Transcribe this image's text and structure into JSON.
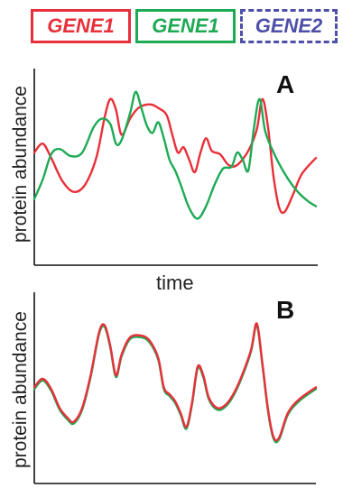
{
  "legend": {
    "items": [
      {
        "label": "GENE1",
        "color": "#e8303a",
        "border": "solid"
      },
      {
        "label": "GENE1",
        "color": "#1eaa55",
        "border": "solid"
      },
      {
        "label": "GENE2",
        "color": "#4d4fa8",
        "border": "dashed"
      }
    ]
  },
  "chart_data": [
    {
      "type": "line",
      "panel": "A",
      "ylabel": "protein abundance",
      "xlabel": "time",
      "ylim": [
        0,
        1
      ],
      "xlim": [
        0,
        1
      ],
      "grid": false,
      "series": [
        {
          "name": "GENE1",
          "color": "#e8303a",
          "points": [
            [
              0,
              0.58
            ],
            [
              0.03,
              0.63
            ],
            [
              0.06,
              0.55
            ],
            [
              0.1,
              0.42
            ],
            [
              0.14,
              0.36
            ],
            [
              0.18,
              0.4
            ],
            [
              0.22,
              0.55
            ],
            [
              0.25,
              0.78
            ],
            [
              0.27,
              0.88
            ],
            [
              0.29,
              0.82
            ],
            [
              0.31,
              0.68
            ],
            [
              0.34,
              0.77
            ],
            [
              0.37,
              0.83
            ],
            [
              0.41,
              0.85
            ],
            [
              0.44,
              0.83
            ],
            [
              0.47,
              0.79
            ],
            [
              0.49,
              0.68
            ],
            [
              0.51,
              0.58
            ],
            [
              0.53,
              0.61
            ],
            [
              0.55,
              0.54
            ],
            [
              0.57,
              0.47
            ],
            [
              0.59,
              0.58
            ],
            [
              0.61,
              0.66
            ],
            [
              0.63,
              0.59
            ],
            [
              0.66,
              0.57
            ],
            [
              0.69,
              0.51
            ],
            [
              0.72,
              0.51
            ],
            [
              0.76,
              0.59
            ],
            [
              0.79,
              0.71
            ],
            [
              0.81,
              0.88
            ],
            [
              0.83,
              0.72
            ],
            [
              0.85,
              0.44
            ],
            [
              0.87,
              0.27
            ],
            [
              0.89,
              0.25
            ],
            [
              0.92,
              0.35
            ],
            [
              0.95,
              0.46
            ],
            [
              1.0,
              0.55
            ]
          ]
        },
        {
          "name": "GENE1",
          "color": "#1eaa55",
          "points": [
            [
              0,
              0.32
            ],
            [
              0.03,
              0.43
            ],
            [
              0.06,
              0.57
            ],
            [
              0.09,
              0.6
            ],
            [
              0.13,
              0.56
            ],
            [
              0.17,
              0.58
            ],
            [
              0.21,
              0.72
            ],
            [
              0.24,
              0.77
            ],
            [
              0.27,
              0.74
            ],
            [
              0.29,
              0.63
            ],
            [
              0.31,
              0.65
            ],
            [
              0.34,
              0.8
            ],
            [
              0.36,
              0.92
            ],
            [
              0.38,
              0.83
            ],
            [
              0.4,
              0.73
            ],
            [
              0.42,
              0.69
            ],
            [
              0.44,
              0.75
            ],
            [
              0.46,
              0.66
            ],
            [
              0.48,
              0.54
            ],
            [
              0.5,
              0.48
            ],
            [
              0.52,
              0.4
            ],
            [
              0.55,
              0.27
            ],
            [
              0.58,
              0.21
            ],
            [
              0.61,
              0.28
            ],
            [
              0.64,
              0.4
            ],
            [
              0.67,
              0.49
            ],
            [
              0.7,
              0.5
            ],
            [
              0.72,
              0.58
            ],
            [
              0.74,
              0.54
            ],
            [
              0.76,
              0.48
            ],
            [
              0.78,
              0.72
            ],
            [
              0.8,
              0.88
            ],
            [
              0.82,
              0.7
            ],
            [
              0.85,
              0.58
            ],
            [
              0.89,
              0.46
            ],
            [
              0.93,
              0.37
            ],
            [
              0.97,
              0.31
            ],
            [
              1.0,
              0.28
            ]
          ]
        }
      ]
    },
    {
      "type": "line",
      "panel": "B",
      "ylabel": "protein abundance",
      "xlabel": "",
      "ylim": [
        0,
        1
      ],
      "xlim": [
        0,
        1
      ],
      "grid": false,
      "series": [
        {
          "name": "GENE1",
          "color": "#1eaa55",
          "points": [
            [
              0,
              0.48
            ],
            [
              0.03,
              0.53
            ],
            [
              0.06,
              0.47
            ],
            [
              0.09,
              0.36
            ],
            [
              0.12,
              0.3
            ],
            [
              0.14,
              0.28
            ],
            [
              0.17,
              0.36
            ],
            [
              0.2,
              0.55
            ],
            [
              0.23,
              0.8
            ],
            [
              0.25,
              0.84
            ],
            [
              0.27,
              0.72
            ],
            [
              0.29,
              0.55
            ],
            [
              0.31,
              0.67
            ],
            [
              0.34,
              0.77
            ],
            [
              0.38,
              0.78
            ],
            [
              0.41,
              0.75
            ],
            [
              0.44,
              0.65
            ],
            [
              0.46,
              0.48
            ],
            [
              0.48,
              0.44
            ],
            [
              0.5,
              0.4
            ],
            [
              0.52,
              0.33
            ],
            [
              0.54,
              0.25
            ],
            [
              0.56,
              0.39
            ],
            [
              0.58,
              0.6
            ],
            [
              0.6,
              0.55
            ],
            [
              0.62,
              0.42
            ],
            [
              0.65,
              0.36
            ],
            [
              0.68,
              0.38
            ],
            [
              0.71,
              0.45
            ],
            [
              0.74,
              0.56
            ],
            [
              0.77,
              0.7
            ],
            [
              0.79,
              0.85
            ],
            [
              0.81,
              0.62
            ],
            [
              0.83,
              0.35
            ],
            [
              0.85,
              0.19
            ],
            [
              0.87,
              0.19
            ],
            [
              0.9,
              0.33
            ],
            [
              0.94,
              0.41
            ],
            [
              1.0,
              0.48
            ]
          ]
        },
        {
          "name": "GENE1",
          "color": "#e8303a",
          "points": [
            [
              0,
              0.49
            ],
            [
              0.03,
              0.54
            ],
            [
              0.06,
              0.48
            ],
            [
              0.09,
              0.37
            ],
            [
              0.12,
              0.31
            ],
            [
              0.14,
              0.29
            ],
            [
              0.17,
              0.37
            ],
            [
              0.2,
              0.56
            ],
            [
              0.23,
              0.81
            ],
            [
              0.25,
              0.85
            ],
            [
              0.27,
              0.73
            ],
            [
              0.29,
              0.56
            ],
            [
              0.31,
              0.68
            ],
            [
              0.34,
              0.78
            ],
            [
              0.38,
              0.79
            ],
            [
              0.41,
              0.76
            ],
            [
              0.44,
              0.66
            ],
            [
              0.46,
              0.49
            ],
            [
              0.48,
              0.45
            ],
            [
              0.5,
              0.41
            ],
            [
              0.52,
              0.34
            ],
            [
              0.54,
              0.26
            ],
            [
              0.56,
              0.4
            ],
            [
              0.58,
              0.61
            ],
            [
              0.6,
              0.56
            ],
            [
              0.62,
              0.43
            ],
            [
              0.65,
              0.37
            ],
            [
              0.68,
              0.39
            ],
            [
              0.71,
              0.46
            ],
            [
              0.74,
              0.57
            ],
            [
              0.77,
              0.71
            ],
            [
              0.79,
              0.86
            ],
            [
              0.81,
              0.63
            ],
            [
              0.83,
              0.36
            ],
            [
              0.85,
              0.2
            ],
            [
              0.87,
              0.2
            ],
            [
              0.9,
              0.34
            ],
            [
              0.94,
              0.42
            ],
            [
              1.0,
              0.49
            ]
          ]
        }
      ]
    }
  ]
}
